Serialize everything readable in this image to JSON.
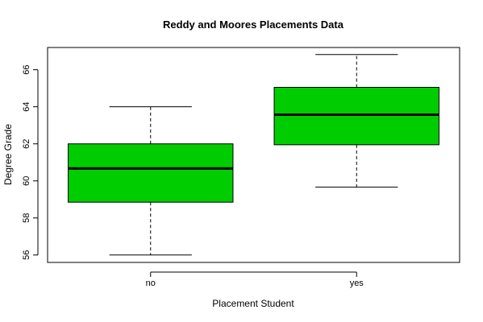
{
  "chart_data": {
    "type": "box",
    "title": "Reddy and Moores Placements Data",
    "xlabel": "Placement Student",
    "ylabel": "Degree Grade",
    "categories": [
      "no",
      "yes"
    ],
    "boxes": [
      {
        "category": "no",
        "min": 56.0,
        "q1": 58.85,
        "median": 60.67,
        "q3": 62.0,
        "max": 64.0
      },
      {
        "category": "yes",
        "min": 59.67,
        "q1": 61.95,
        "median": 63.57,
        "q3": 65.05,
        "max": 66.82
      }
    ],
    "yticks": [
      "56",
      "58",
      "60",
      "62",
      "64",
      "66"
    ],
    "ylim": [
      55.6,
      67.2
    ],
    "box_color": "#00cd00",
    "grid": false
  }
}
